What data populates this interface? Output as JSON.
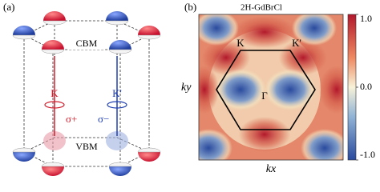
{
  "panel_a": {
    "label": "(a)",
    "cbm": "CBM",
    "vbm": "VBM",
    "valley_k": "K",
    "valley_k_prime": "K'",
    "sigma_plus": "σ+",
    "sigma_minus": "σ−"
  },
  "panel_b": {
    "label": "(b)",
    "title": "2H-GdBrCl",
    "x_label": "kx",
    "y_label": "ky",
    "point_k": "K",
    "point_k_prime": "K'",
    "point_gamma": "Γ",
    "colorbar_ticks": [
      {
        "value": 1,
        "label": "1.0"
      },
      {
        "value": 0,
        "label": "0.0"
      },
      {
        "value": -1,
        "label": "-1.0"
      }
    ],
    "colorbar_lim": [
      -1,
      1
    ]
  }
}
